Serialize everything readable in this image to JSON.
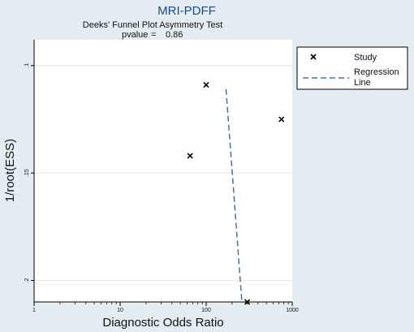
{
  "chart_data": {
    "type": "scatter",
    "title": "MRI-PDFF",
    "subtitle": "Deeks' Funnel Plot Asymmetry Test",
    "pvalue_label": "pvalue",
    "pvalue": "0.86",
    "xlabel": "Diagnostic Odds Ratio",
    "ylabel": "1/root(ESS)",
    "x_scale": "log",
    "xlim": [
      1,
      1000
    ],
    "ylim": [
      0.088,
      0.21
    ],
    "y_reversed": true,
    "x_ticks": [
      1,
      10,
      100,
      1000
    ],
    "x_tick_labels": [
      "1",
      "10",
      "100",
      "1000"
    ],
    "y_ticks": [
      0.1,
      0.15,
      0.2
    ],
    "y_tick_labels": [
      ".1",
      ".15",
      ".2"
    ],
    "grid": "horizontal",
    "legend_position": "right",
    "series": [
      {
        "name": "Study",
        "marker": "x",
        "points": [
          {
            "x": 100,
            "y": 0.109
          },
          {
            "x": 65,
            "y": 0.142
          },
          {
            "x": 750,
            "y": 0.125
          },
          {
            "x": 300,
            "y": 0.212
          }
        ]
      },
      {
        "name": "Regression Line",
        "style": "dashed",
        "color": "#4f6f9a",
        "points": [
          {
            "x": 170,
            "y": 0.111
          },
          {
            "x": 260,
            "y": 0.21
          }
        ]
      }
    ]
  },
  "legend": {
    "study": "Study",
    "regression_line1": "Regression",
    "regression_line2": "Line"
  }
}
